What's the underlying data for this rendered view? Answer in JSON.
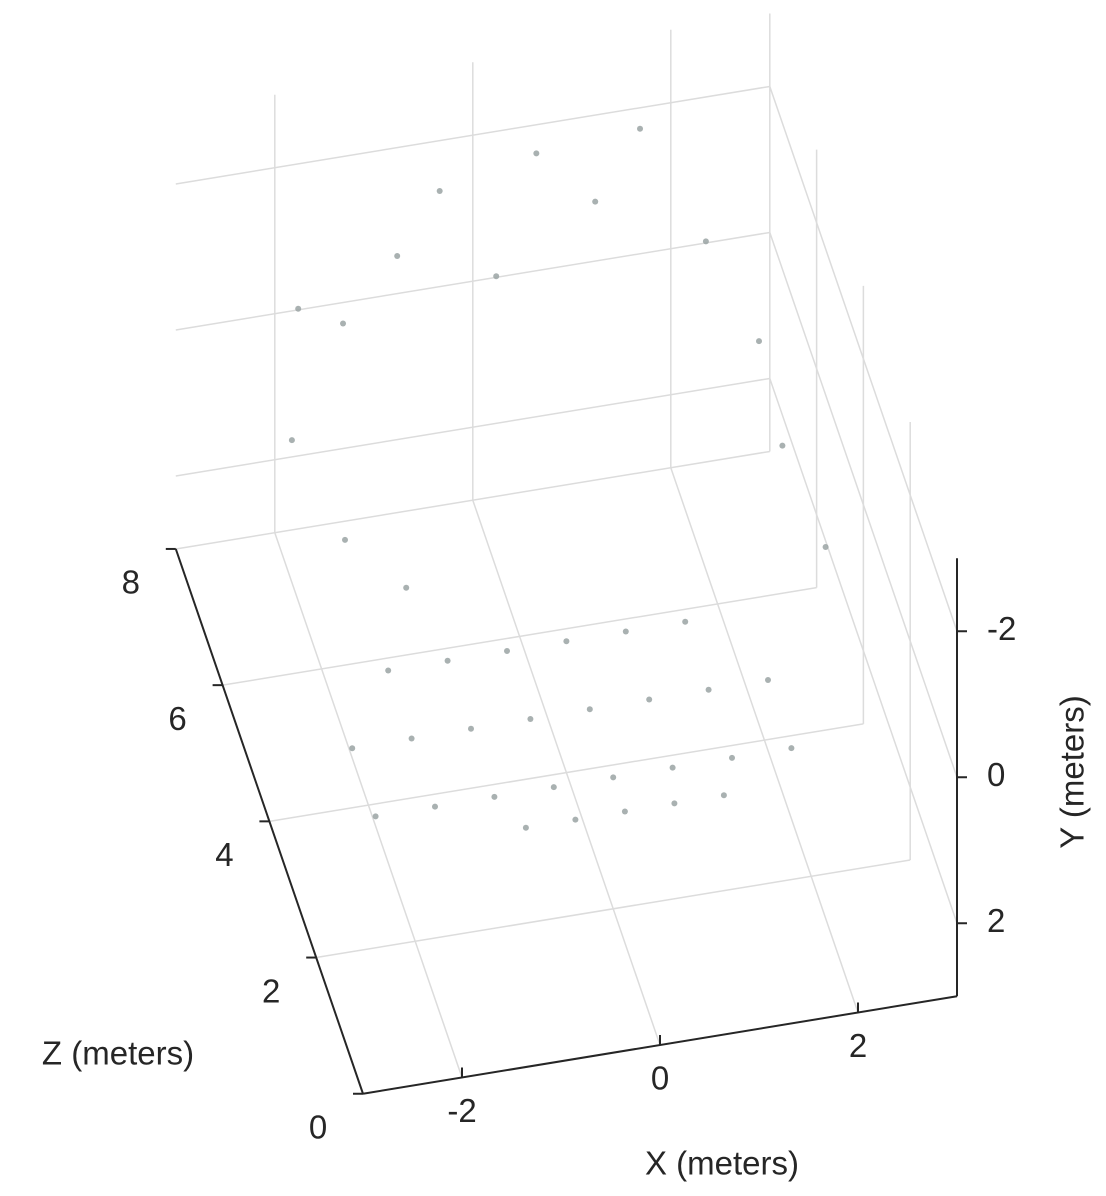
{
  "chart_data": {
    "type": "scatter3d",
    "xlabel": "X (meters)",
    "ylabel": "Y (meters)",
    "zlabel": "Z (meters)",
    "xlim": [
      -3,
      3
    ],
    "ylim": [
      -3,
      3
    ],
    "zlim": [
      0,
      8
    ],
    "xticks": [
      -2,
      0,
      2
    ],
    "yticks": [
      -2,
      0,
      2
    ],
    "zticks": [
      0,
      2,
      4,
      6,
      8
    ],
    "grid": true,
    "points": {
      "color": "#9aa3a3",
      "x": [
        -2.4,
        -1.8,
        -1.2,
        -0.6,
        0,
        0.6,
        1.2,
        1.8,
        -2.4,
        -1.8,
        -1.2,
        -0.6,
        0,
        0.6,
        1.2,
        1.8,
        -1.8,
        -1.2,
        -0.6,
        0,
        0.6,
        1.2,
        -1,
        -0.5,
        0,
        0.5,
        1,
        -2,
        -1.5,
        -1,
        -0.5,
        0,
        0.5,
        1,
        1.5,
        2,
        2.3,
        2.3,
        2.5,
        -2.3,
        -2,
        -1.5
      ],
      "y": [
        1.2,
        1.2,
        1.2,
        1.2,
        1.2,
        1.2,
        1.2,
        1.2,
        1.2,
        1.2,
        1.2,
        1.2,
        1.2,
        1.2,
        1.2,
        1.2,
        1.2,
        1.2,
        1.2,
        1.2,
        1.2,
        1.2,
        1.2,
        1.2,
        1.2,
        1.2,
        1.2,
        -1,
        -0.5,
        -1.5,
        -2,
        -1,
        -2.2,
        -1.8,
        -2.5,
        -1.5,
        -1,
        -0.5,
        0,
        -0.2,
        0.3,
        0.6
      ],
      "z": [
        2,
        2,
        2,
        2,
        2,
        2,
        2,
        2,
        3,
        3,
        3,
        3,
        3,
        3,
        3,
        3,
        4,
        4,
        4,
        4,
        4,
        4,
        1.5,
        1.5,
        1.5,
        1.5,
        1.5,
        7,
        7.2,
        7,
        7.3,
        7,
        7.4,
        7,
        7.2,
        6.5,
        5.5,
        4.5,
        3.5,
        6,
        5,
        4.5
      ]
    }
  }
}
